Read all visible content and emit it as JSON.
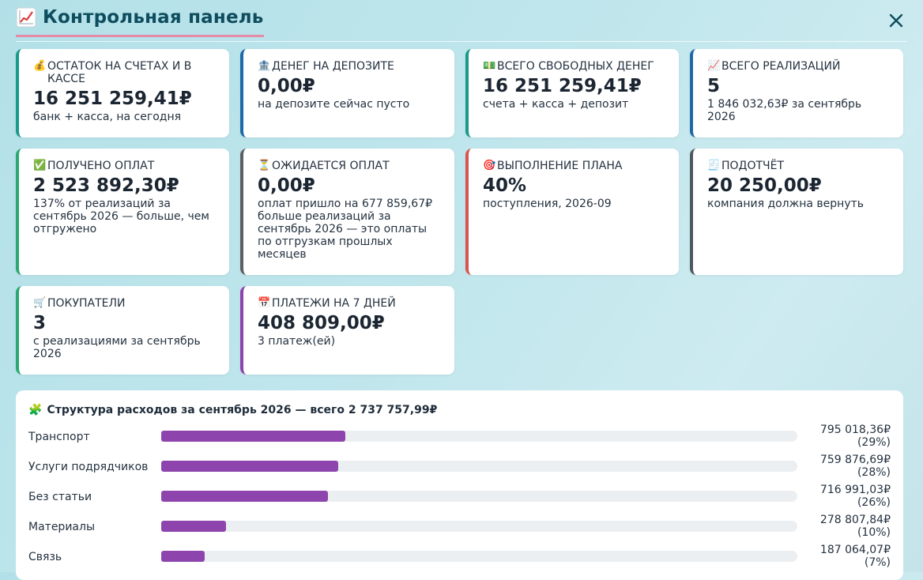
{
  "header": {
    "title": "Контрольная панель",
    "title_icon": "chart-increasing-icon",
    "close_icon": "close-icon"
  },
  "cards": [
    {
      "id": "balance",
      "icon": "money-bag-icon",
      "emoji": "💰",
      "label": "ОСТАТОК НА СЧЕТАХ И В КАССЕ",
      "value": "16 251 259,41₽",
      "sub": "банк + касса, на сегодня",
      "accent": "#1a9a8a"
    },
    {
      "id": "deposit",
      "icon": "bank-icon",
      "emoji": "🏦",
      "label": "ДЕНЕГ НА ДЕПОЗИТЕ",
      "value": "0,00₽",
      "sub": "на депозите сейчас пусто",
      "accent": "#1e6aa8"
    },
    {
      "id": "free",
      "icon": "banknote-icon",
      "emoji": "💵",
      "label": "ВСЕГО СВОБОДНЫХ ДЕНЕГ",
      "value": "16 251 259,41₽",
      "sub": "счета + касса + депозит",
      "accent": "#1a9a8a"
    },
    {
      "id": "sales",
      "icon": "chart-increasing-icon",
      "emoji": "📈",
      "label": "ВСЕГО РЕАЛИЗАЦИЙ",
      "value": "5",
      "sub": "1 846 032,63₽ за сентябрь 2026",
      "accent": "#1e6aa8"
    },
    {
      "id": "received",
      "icon": "check-mark-icon",
      "emoji": "✅",
      "label": "ПОЛУЧЕНО ОПЛАТ",
      "value": "2 523 892,30₽",
      "sub": "137% от реализаций за сентябрь 2026 — больше, чем отгружено",
      "accent": "#2aa871"
    },
    {
      "id": "expected",
      "icon": "hourglass-icon",
      "emoji": "⏳",
      "label": "ОЖИДАЕТСЯ ОПЛАТ",
      "value": "0,00₽",
      "sub": "оплат пришло на 677 859,67₽ больше реализаций за сентябрь 2026 — это оплаты по отгрузкам прошлых месяцев",
      "accent": "#5b6066"
    },
    {
      "id": "plan",
      "icon": "target-icon",
      "emoji": "🎯",
      "label": "ВЫПОЛНЕНИЕ ПЛАНА",
      "value": "40%",
      "sub": "поступления, 2026-09",
      "accent": "#d9534f"
    },
    {
      "id": "advance",
      "icon": "receipt-icon",
      "emoji": "🧾",
      "label": "ПОДОТЧЁТ",
      "value": "20 250,00₽",
      "sub": "компания должна вернуть",
      "accent": "#4e5862"
    },
    {
      "id": "buyers",
      "icon": "shopping-cart-icon",
      "emoji": "🛒",
      "label": "ПОКУПАТЕЛИ",
      "value": "3",
      "sub": "с реализациями за сентябрь 2026",
      "accent": "#2aa871"
    },
    {
      "id": "payments",
      "icon": "calendar-icon",
      "emoji": "📅",
      "label": "ПЛАТЕЖИ НА 7 ДНЕЙ",
      "value": "408 809,00₽",
      "sub": "3 платеж(ей)",
      "accent": "#8e44ad"
    }
  ],
  "expenses": {
    "icon": "puzzle-piece-icon",
    "emoji": "🧩",
    "title": "Структура расходов за сентябрь 2026 — всего 2 737 757,99₽",
    "bar_color": "#8e44ad",
    "items": [
      {
        "name": "Транспорт",
        "amount": "795 018,36₽",
        "percent_label": "(29%)",
        "share": 0.29
      },
      {
        "name": "Услуги подрядчиков",
        "amount": "759 876,69₽",
        "percent_label": "(28%)",
        "share": 0.278
      },
      {
        "name": "Без статьи",
        "amount": "716 991,03₽",
        "percent_label": "(26%)",
        "share": 0.262
      },
      {
        "name": "Материалы",
        "amount": "278 807,84₽",
        "percent_label": "(10%)",
        "share": 0.102
      },
      {
        "name": "Связь",
        "amount": "187 064,07₽",
        "percent_label": "(7%)",
        "share": 0.068
      }
    ]
  }
}
